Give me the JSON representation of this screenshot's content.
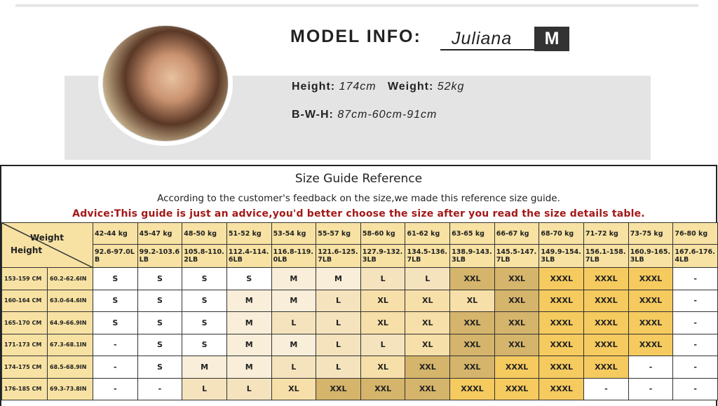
{
  "model": {
    "title": "MODEL INFO:",
    "name": "Juliana",
    "size": "M",
    "height_label": "Height:",
    "height": "174cm",
    "weight_label": "Weight:",
    "weight": "52kg",
    "bwh_label": "B-W-H:",
    "bwh": "87cm-60cm-91cm"
  },
  "guide": {
    "title": "Size Guide Reference",
    "subtitle": "According to the customer's feedback on the size,we made this reference size guide.",
    "advice": "Advice:This guide is just an advice,you'd better choose the size after you read the size details table.",
    "corner_weight": "Weight",
    "corner_height": "Height",
    "weights_kg": [
      "42-44 kg",
      "45-47 kg",
      "48-50 kg",
      "51-52 kg",
      "53-54 kg",
      "55-57 kg",
      "58-60 kg",
      "61-62 kg",
      "63-65 kg",
      "66-67 kg",
      "68-70 kg",
      "71-72 kg",
      "73-75 kg",
      "76-80 kg"
    ],
    "weights_lb": [
      "92.6-97.0LB",
      "99.2-103.6LB",
      "105.8-110.2LB",
      "112.4-114.6LB",
      "116.8-119.0LB",
      "121.6-125.7LB",
      "127.9-132.3LB",
      "134.5-136.7LB",
      "138.9-143.3LB",
      "145.5-147.7LB",
      "149.9-154.3LB",
      "156.1-158.7LB",
      "160.9-165.3LB",
      "167.6-176.4LB"
    ],
    "rows": [
      {
        "cm": "153-159 CM",
        "in": "60.2-62.6IN",
        "sizes": [
          "S",
          "S",
          "S",
          "S",
          "M",
          "M",
          "L",
          "L",
          "XXL",
          "XXL",
          "XXXL",
          "XXXL",
          "XXXL",
          "-"
        ]
      },
      {
        "cm": "160-164 CM",
        "in": "63.0-64.6IN",
        "sizes": [
          "S",
          "S",
          "S",
          "M",
          "M",
          "L",
          "XL",
          "XL",
          "XL",
          "XXL",
          "XXXL",
          "XXXL",
          "XXXL",
          "-"
        ]
      },
      {
        "cm": "165-170 CM",
        "in": "64.9-66.9IN",
        "sizes": [
          "S",
          "S",
          "S",
          "M",
          "L",
          "L",
          "XL",
          "XL",
          "XXL",
          "XXL",
          "XXXL",
          "XXXL",
          "XXXL",
          "-"
        ]
      },
      {
        "cm": "171-173 CM",
        "in": "67.3-68.1IN",
        "sizes": [
          "-",
          "S",
          "S",
          "M",
          "M",
          "L",
          "L",
          "XL",
          "XXL",
          "XXL",
          "XXXL",
          "XXXL",
          "XXXL",
          "-"
        ]
      },
      {
        "cm": "174-175 CM",
        "in": "68.5-68.9IN",
        "sizes": [
          "-",
          "S",
          "M",
          "M",
          "L",
          "L",
          "XL",
          "XXL",
          "XXL",
          "XXXL",
          "XXXL",
          "XXXL",
          "-",
          "-"
        ]
      },
      {
        "cm": "176-185 CM",
        "in": "69.3-73.8IN",
        "sizes": [
          "-",
          "-",
          "L",
          "L",
          "XL",
          "XXL",
          "XXL",
          "XXL",
          "XXXL",
          "XXXL",
          "XXXL",
          "-",
          "-",
          "-"
        ]
      }
    ],
    "colors": {
      "header": "#f7e2a3",
      "S": "#ffffff",
      "-": "#ffffff",
      "M": "#f8eed9",
      "L": "#f4e3bd",
      "XL": "#f6dfa8",
      "XXL": "#d5b46b",
      "XXXL": "#f5ca5f",
      "advice": "#a31818"
    }
  }
}
